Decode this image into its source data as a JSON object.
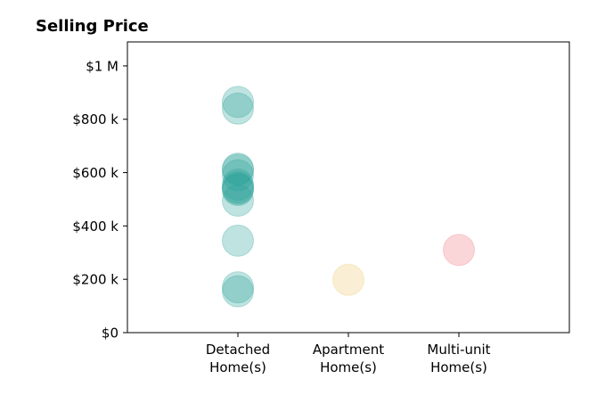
{
  "chart_data": {
    "type": "scatter",
    "title": "Selling Price",
    "xlabel": "",
    "ylabel": "",
    "categories": [
      [
        "Detached",
        "Home(s)"
      ],
      [
        "Apartment",
        "Home(s)"
      ],
      [
        "Multi-unit",
        "Home(s)"
      ]
    ],
    "xlim": [
      -1,
      3
    ],
    "ylim": [
      0,
      1090000
    ],
    "yticks": [
      0,
      200000,
      400000,
      600000,
      800000,
      1000000
    ],
    "ytick_labels": [
      "$0",
      "$200 k",
      "$400 k",
      "$600 k",
      "$800 k",
      "$1 M"
    ],
    "grid": false,
    "series": [
      {
        "category": 0,
        "color": "#2aa198",
        "values": [
          865000,
          840000,
          615000,
          610000,
          590000,
          555000,
          545000,
          540000,
          535000,
          495000,
          345000,
          170000,
          155000
        ]
      },
      {
        "category": 1,
        "color": "#f0c870",
        "values": [
          198000
        ]
      },
      {
        "category": 2,
        "color": "#ee7782",
        "values": [
          310000
        ]
      }
    ]
  }
}
